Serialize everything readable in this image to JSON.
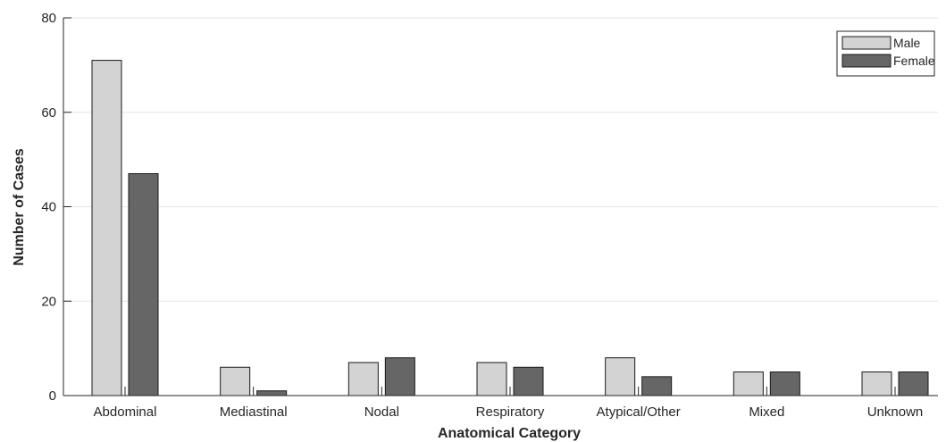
{
  "chart_data": {
    "type": "bar",
    "xlabel": "Anatomical Category",
    "ylabel": "Number of Cases",
    "categories": [
      "Abdominal",
      "Mediastinal",
      "Nodal",
      "Respiratory",
      "Atypical/Other",
      "Mixed",
      "Unknown"
    ],
    "series": [
      {
        "name": "Male",
        "values": [
          71,
          6,
          7,
          7,
          8,
          5,
          5
        ],
        "color": "#d3d3d3"
      },
      {
        "name": "Female",
        "values": [
          47,
          1,
          8,
          6,
          4,
          5,
          5
        ],
        "color": "#666666"
      }
    ],
    "ylim": [
      0,
      80
    ],
    "yticks": [
      0,
      20,
      40,
      60,
      80
    ],
    "grid": "horizontal",
    "legend_position": "top-right"
  }
}
